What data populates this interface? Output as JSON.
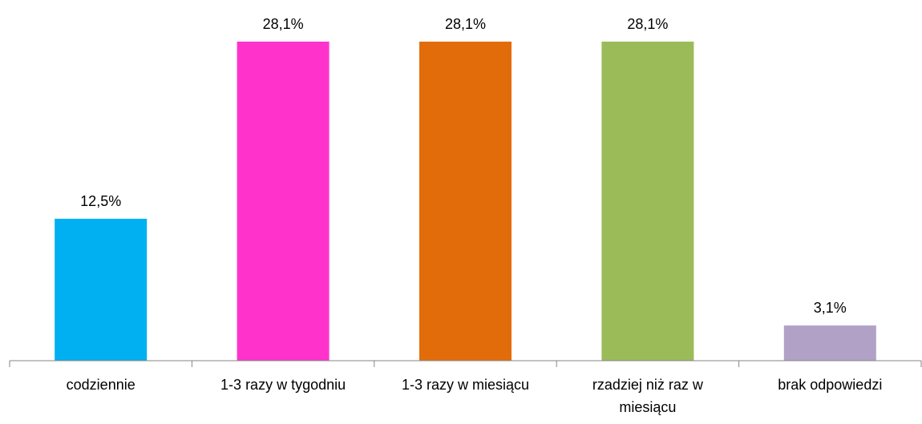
{
  "chart_data": {
    "type": "bar",
    "categories": [
      "codziennie",
      "1-3 razy w tygodniu",
      "1-3 razy w miesiącu",
      "rzadziej niż raz w miesiącu",
      "brak odpowiedzi"
    ],
    "values": [
      12.5,
      28.1,
      28.1,
      28.1,
      3.1
    ],
    "value_labels": [
      "12,5%",
      "28,1%",
      "28,1%",
      "28,1%",
      "3,1%"
    ],
    "colors": [
      "#00b0f0",
      "#ff33cc",
      "#e36c0a",
      "#9bbb59",
      "#b2a1c7"
    ],
    "ylim": [
      0,
      30
    ]
  }
}
